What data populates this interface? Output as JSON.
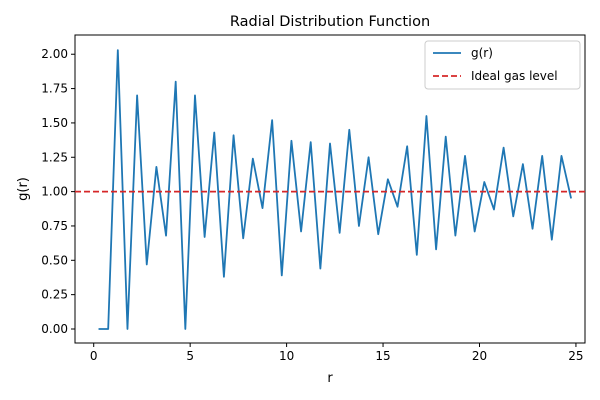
{
  "chart_data": {
    "type": "line",
    "title": "Radial Distribution Function",
    "xlabel": "r",
    "ylabel": "g(r)",
    "xlim": [
      -0.97,
      25.47
    ],
    "ylim": [
      -0.102,
      2.14
    ],
    "xticks": [
      0,
      5,
      10,
      15,
      20,
      25
    ],
    "xtick_labels": [
      "0",
      "5",
      "10",
      "15",
      "20",
      "25"
    ],
    "yticks": [
      0.0,
      0.25,
      0.5,
      0.75,
      1.0,
      1.25,
      1.5,
      1.75,
      2.0
    ],
    "ytick_labels": [
      "0.00",
      "0.25",
      "0.50",
      "0.75",
      "1.00",
      "1.25",
      "1.50",
      "1.75",
      "2.00"
    ],
    "grid": false,
    "legend_position": "top-right",
    "series": [
      {
        "name": "g(r)",
        "color": "#1f77b4",
        "style": "solid",
        "x": [
          0.25,
          0.75,
          1.25,
          1.75,
          2.25,
          2.75,
          3.25,
          3.75,
          4.25,
          4.75,
          5.25,
          5.75,
          6.25,
          6.75,
          7.25,
          7.75,
          8.25,
          8.75,
          9.25,
          9.75,
          10.25,
          10.75,
          11.25,
          11.75,
          12.25,
          12.75,
          13.25,
          13.75,
          14.25,
          14.75,
          15.25,
          15.75,
          16.25,
          16.75,
          17.25,
          17.75,
          18.25,
          18.75,
          19.25,
          19.75,
          20.25,
          20.75,
          21.25,
          21.75,
          22.25,
          22.75,
          23.25,
          23.75,
          24.25,
          24.75
        ],
        "y": [
          0.0,
          0.0,
          2.03,
          0.0,
          1.7,
          0.47,
          1.18,
          0.68,
          1.8,
          0.0,
          1.7,
          0.67,
          1.43,
          0.38,
          1.41,
          0.66,
          1.24,
          0.88,
          1.52,
          0.39,
          1.37,
          0.71,
          1.36,
          0.44,
          1.35,
          0.7,
          1.45,
          0.75,
          1.25,
          0.69,
          1.09,
          0.89,
          1.33,
          0.54,
          1.55,
          0.58,
          1.4,
          0.68,
          1.26,
          0.71,
          1.07,
          0.87,
          1.32,
          0.82,
          1.2,
          0.73,
          1.26,
          0.65,
          1.26,
          0.95
        ]
      },
      {
        "name": "Ideal gas level",
        "color": "#d62728",
        "style": "dashed",
        "y_constant": 1.0
      }
    ]
  }
}
